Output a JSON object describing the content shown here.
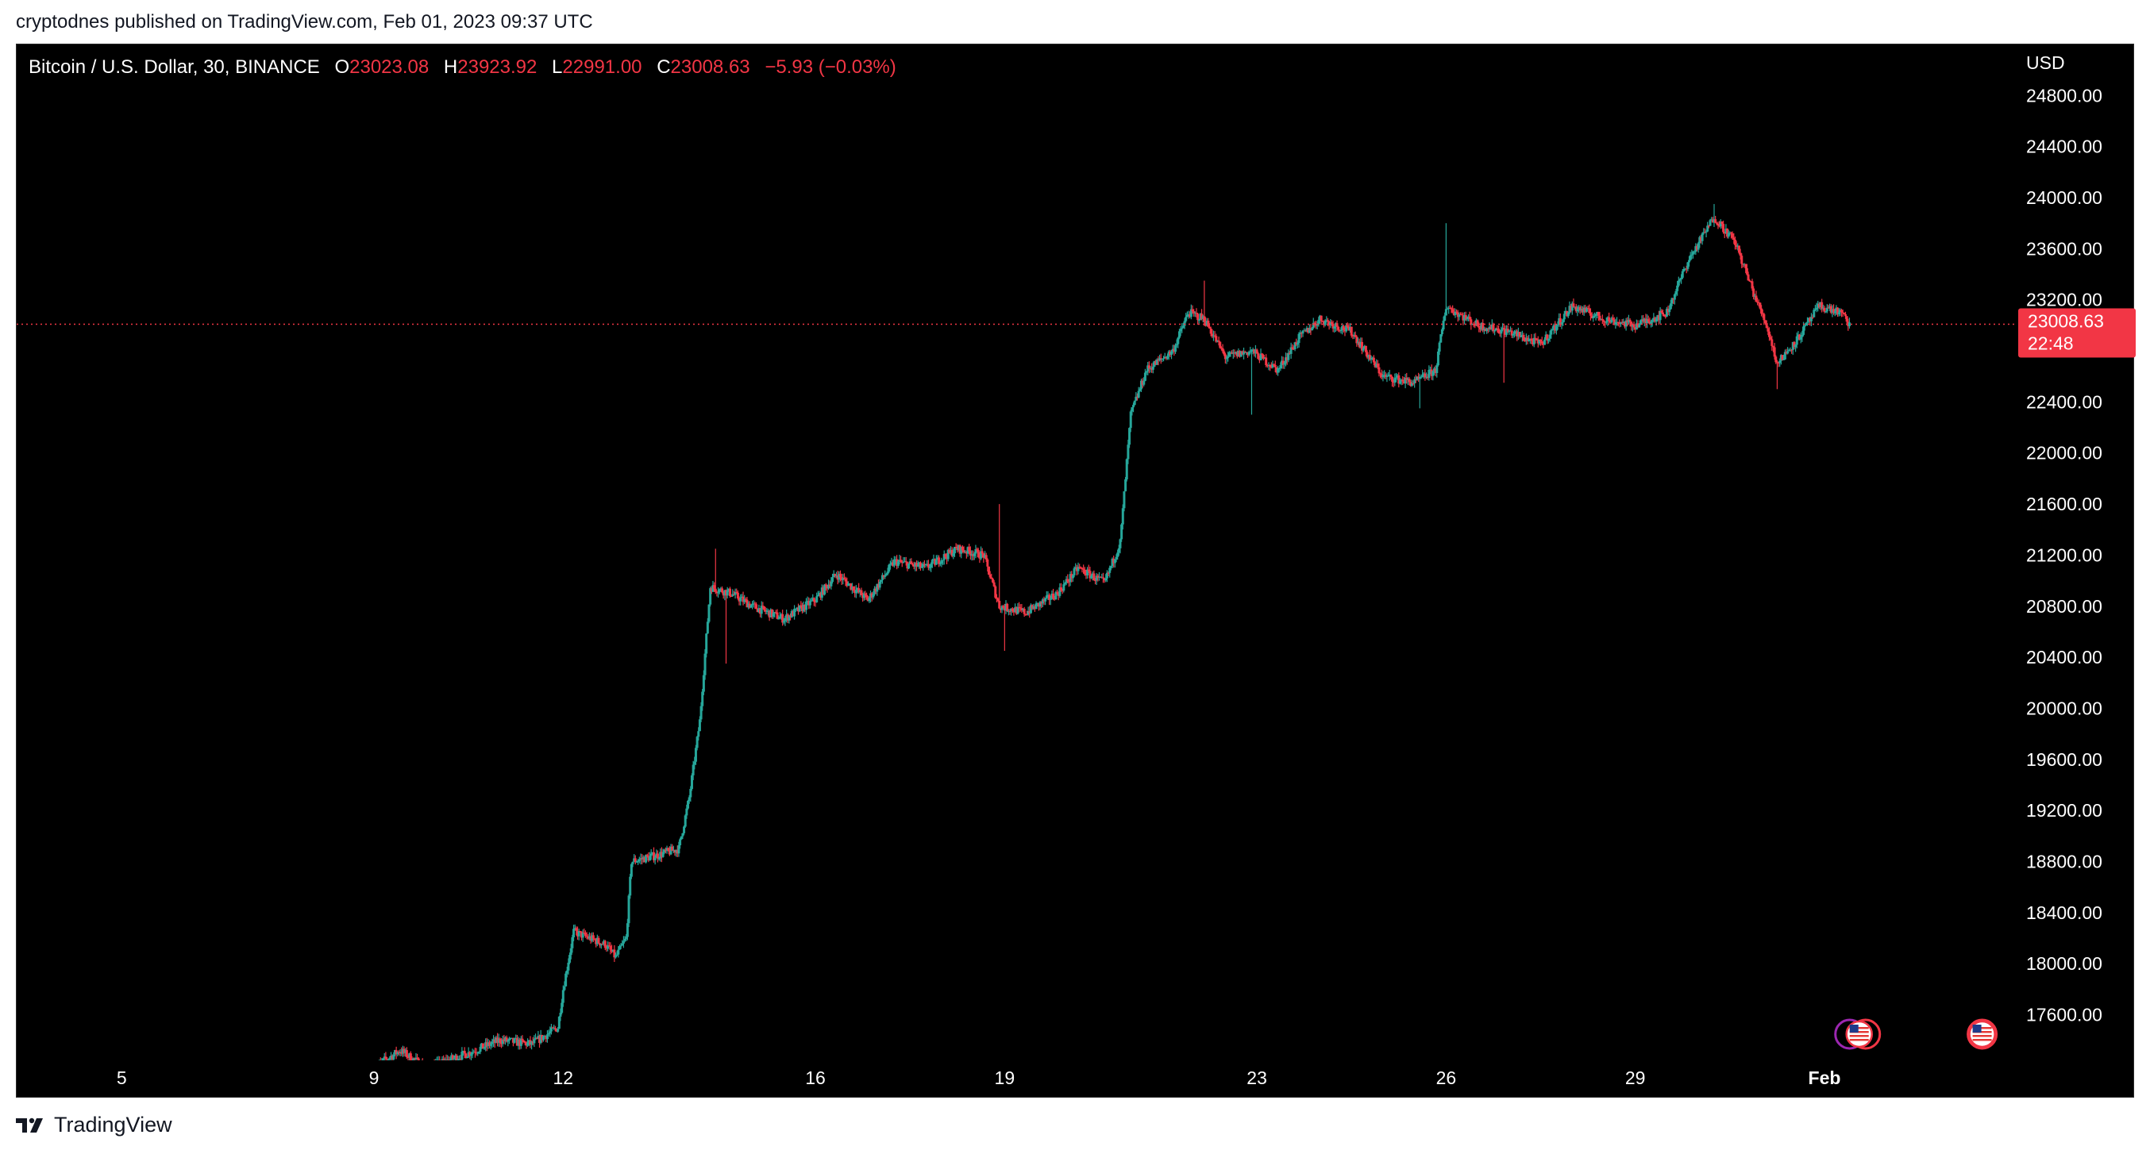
{
  "header": {
    "publisher_line": "cryptodnes published on TradingView.com, Feb 01, 2023 09:37 UTC"
  },
  "legend": {
    "symbol": "Bitcoin / U.S. Dollar, 30, BINANCE",
    "o_label": "O",
    "o_value": "23023.08",
    "h_label": "H",
    "h_value": "23923.92",
    "l_label": "L",
    "l_value": "22991.00",
    "c_label": "C",
    "c_value": "23008.63",
    "change": "−5.93 (−0.03%)"
  },
  "axis": {
    "currency": "USD",
    "price_tag": "23008.63",
    "countdown": "22:48"
  },
  "footer": {
    "brand": "TradingView"
  },
  "colors": {
    "up": "#26a69a",
    "down": "#f23645",
    "background": "#000000",
    "axis_text": "#ffffff",
    "last_price_line": "#f23645"
  },
  "icons": [
    "tradingview-logo-icon",
    "us-flag-event-icon",
    "event-bubble-icon"
  ],
  "chart_data": {
    "type": "candlestick",
    "interval_minutes": 30,
    "x_tick_labels": [
      {
        "label": "5",
        "date": "2023-01-05"
      },
      {
        "label": "9",
        "date": "2023-01-09"
      },
      {
        "label": "12",
        "date": "2023-01-12"
      },
      {
        "label": "16",
        "date": "2023-01-16"
      },
      {
        "label": "19",
        "date": "2023-01-19"
      },
      {
        "label": "23",
        "date": "2023-01-23"
      },
      {
        "label": "26",
        "date": "2023-01-26"
      },
      {
        "label": "29",
        "date": "2023-01-29"
      },
      {
        "label": "Feb",
        "date": "2023-02-01"
      }
    ],
    "y_tick_labels": [
      "24800.00",
      "24400.00",
      "24000.00",
      "23600.00",
      "23200.00",
      "22800.00",
      "22400.00",
      "22000.00",
      "21600.00",
      "21200.00",
      "20800.00",
      "20400.00",
      "20000.00",
      "19600.00",
      "19200.00",
      "18800.00",
      "18400.00",
      "18000.00",
      "17600.00"
    ],
    "ylim": [
      17230,
      25200
    ],
    "last_price": 23008.63,
    "price_path": [
      {
        "date": "2023-01-09 00:00",
        "price": 17190
      },
      {
        "date": "2023-01-09 10:00",
        "price": 17320
      },
      {
        "date": "2023-01-09 20:00",
        "price": 17180
      },
      {
        "date": "2023-01-10 12:00",
        "price": 17300
      },
      {
        "date": "2023-01-11 00:00",
        "price": 17400
      },
      {
        "date": "2023-01-11 12:00",
        "price": 17370
      },
      {
        "date": "2023-01-11 22:00",
        "price": 17500
      },
      {
        "date": "2023-01-12 00:00",
        "price": 17800
      },
      {
        "date": "2023-01-12 04:00",
        "price": 18250
      },
      {
        "date": "2023-01-12 16:00",
        "price": 18150
      },
      {
        "date": "2023-01-12 20:00",
        "price": 18050
      },
      {
        "date": "2023-01-13 00:00",
        "price": 18200
      },
      {
        "date": "2023-01-13 02:00",
        "price": 18800
      },
      {
        "date": "2023-01-13 12:00",
        "price": 18850
      },
      {
        "date": "2023-01-13 20:00",
        "price": 18900
      },
      {
        "date": "2023-01-14 00:00",
        "price": 19300
      },
      {
        "date": "2023-01-14 04:00",
        "price": 19900
      },
      {
        "date": "2023-01-14 08:00",
        "price": 20950
      },
      {
        "date": "2023-01-14 16:00",
        "price": 20900
      },
      {
        "date": "2023-01-15 00:00",
        "price": 20800
      },
      {
        "date": "2023-01-15 12:00",
        "price": 20700
      },
      {
        "date": "2023-01-16 00:00",
        "price": 20850
      },
      {
        "date": "2023-01-16 08:00",
        "price": 21050
      },
      {
        "date": "2023-01-16 20:00",
        "price": 20850
      },
      {
        "date": "2023-01-17 06:00",
        "price": 21150
      },
      {
        "date": "2023-01-17 18:00",
        "price": 21100
      },
      {
        "date": "2023-01-18 06:00",
        "price": 21250
      },
      {
        "date": "2023-01-18 16:00",
        "price": 21200
      },
      {
        "date": "2023-01-18 22:00",
        "price": 20800
      },
      {
        "date": "2023-01-19 08:00",
        "price": 20750
      },
      {
        "date": "2023-01-19 20:00",
        "price": 20900
      },
      {
        "date": "2023-01-20 04:00",
        "price": 21100
      },
      {
        "date": "2023-01-20 14:00",
        "price": 20980
      },
      {
        "date": "2023-01-20 20:00",
        "price": 21300
      },
      {
        "date": "2023-01-21 00:00",
        "price": 22300
      },
      {
        "date": "2023-01-21 06:00",
        "price": 22650
      },
      {
        "date": "2023-01-21 16:00",
        "price": 22800
      },
      {
        "date": "2023-01-21 22:00",
        "price": 23100
      },
      {
        "date": "2023-01-22 04:00",
        "price": 23050
      },
      {
        "date": "2023-01-22 12:00",
        "price": 22750
      },
      {
        "date": "2023-01-22 22:00",
        "price": 22800
      },
      {
        "date": "2023-01-23 08:00",
        "price": 22650
      },
      {
        "date": "2023-01-23 16:00",
        "price": 22900
      },
      {
        "date": "2023-01-24 00:00",
        "price": 23050
      },
      {
        "date": "2023-01-24 12:00",
        "price": 22950
      },
      {
        "date": "2023-01-25 00:00",
        "price": 22600
      },
      {
        "date": "2023-01-25 12:00",
        "price": 22550
      },
      {
        "date": "2023-01-25 20:00",
        "price": 22650
      },
      {
        "date": "2023-01-26 00:00",
        "price": 23150
      },
      {
        "date": "2023-01-26 12:00",
        "price": 23000
      },
      {
        "date": "2023-01-27 00:00",
        "price": 22950
      },
      {
        "date": "2023-01-27 12:00",
        "price": 22850
      },
      {
        "date": "2023-01-28 00:00",
        "price": 23150
      },
      {
        "date": "2023-01-28 12:00",
        "price": 23050
      },
      {
        "date": "2023-01-29 00:00",
        "price": 23000
      },
      {
        "date": "2023-01-29 12:00",
        "price": 23100
      },
      {
        "date": "2023-01-29 20:00",
        "price": 23500
      },
      {
        "date": "2023-01-30 06:00",
        "price": 23850
      },
      {
        "date": "2023-01-30 14:00",
        "price": 23650
      },
      {
        "date": "2023-01-30 22:00",
        "price": 23200
      },
      {
        "date": "2023-01-31 02:00",
        "price": 23000
      },
      {
        "date": "2023-01-31 06:00",
        "price": 22700
      },
      {
        "date": "2023-01-31 14:00",
        "price": 22900
      },
      {
        "date": "2023-01-31 22:00",
        "price": 23150
      },
      {
        "date": "2023-02-01 06:00",
        "price": 23100
      },
      {
        "date": "2023-02-01 09:30",
        "price": 23008.63
      }
    ],
    "spikes": [
      {
        "date": "2023-01-14 10:00",
        "price": 21250
      },
      {
        "date": "2023-01-14 14:00",
        "price": 20350
      },
      {
        "date": "2023-01-18 22:00",
        "price": 21600
      },
      {
        "date": "2023-01-19 00:00",
        "price": 20450
      },
      {
        "date": "2023-01-22 04:00",
        "price": 23350
      },
      {
        "date": "2023-01-22 22:00",
        "price": 22300
      },
      {
        "date": "2023-01-25 14:00",
        "price": 22350
      },
      {
        "date": "2023-01-26 00:00",
        "price": 23800
      },
      {
        "date": "2023-01-26 22:00",
        "price": 22550
      },
      {
        "date": "2023-01-30 06:00",
        "price": 23950
      },
      {
        "date": "2023-01-31 06:00",
        "price": 22500
      }
    ],
    "event_markers": [
      {
        "date": "2023-02-01 12:00",
        "type": "economic-event"
      },
      {
        "date": "2023-02-03 12:00",
        "type": "economic-event"
      }
    ]
  }
}
